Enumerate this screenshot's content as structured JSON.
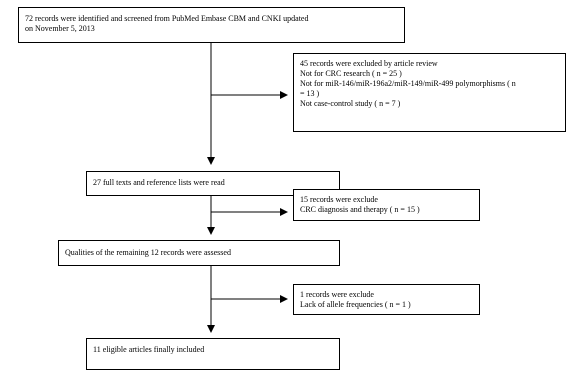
{
  "flowchart": {
    "box1": {
      "lines": [
        "72 records were identified and screened from PubMed Embase CBM and CNKI updated",
        "on November 5, 2013"
      ]
    },
    "excl1": {
      "lines": [
        "45 records were excluded by article review",
        "Not for CRC research ( n = 25 )",
        "Not for miR-146/miR-196a2/miR-149/miR-499 polymorphisms ( n",
        "= 13 )",
        "Not case-control study ( n = 7 )"
      ]
    },
    "box2": {
      "lines": [
        "27 full texts and reference lists were read"
      ]
    },
    "excl2": {
      "lines": [
        "15 records were exclude",
        "CRC diagnosis and therapy ( n = 15 )"
      ]
    },
    "box3": {
      "lines": [
        "Qualities of the remaining 12 records were assessed"
      ]
    },
    "excl3": {
      "lines": [
        "1 records were exclude",
        "Lack of allele frequencies ( n = 1 )"
      ]
    },
    "box4": {
      "lines": [
        "11 eligible articles finally included"
      ]
    }
  }
}
